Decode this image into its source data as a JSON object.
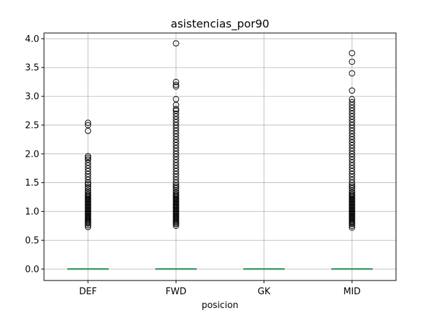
{
  "chart_data": {
    "type": "box",
    "title": "asistencias_por90",
    "xlabel": "posicion",
    "ylabel": "",
    "categories": [
      "DEF",
      "FWD",
      "GK",
      "MID"
    ],
    "ylim": [
      -0.2,
      4.1
    ],
    "yticks": [
      0.0,
      0.5,
      1.0,
      1.5,
      2.0,
      2.5,
      3.0,
      3.5,
      4.0
    ],
    "ytick_labels": [
      "0.0",
      "0.5",
      "1.0",
      "1.5",
      "2.0",
      "2.5",
      "3.0",
      "3.5",
      "4.0"
    ],
    "grid": true,
    "colors": {
      "box": "#1f77b4",
      "median": "#2ca02c",
      "grid": "#b0b0b0"
    },
    "boxes": [
      {
        "category": "DEF",
        "q1": 0.0,
        "median": 0.0,
        "q3": 0.0,
        "whisker_low": 0.0,
        "whisker_high": 0.0,
        "outliers": [
          0.73,
          0.76,
          0.79,
          0.8,
          0.82,
          0.84,
          0.86,
          0.88,
          0.9,
          0.92,
          0.94,
          0.96,
          0.98,
          1.0,
          1.02,
          1.04,
          1.06,
          1.08,
          1.1,
          1.12,
          1.14,
          1.16,
          1.18,
          1.2,
          1.22,
          1.24,
          1.26,
          1.28,
          1.3,
          1.33,
          1.36,
          1.4,
          1.43,
          1.47,
          1.5,
          1.55,
          1.6,
          1.65,
          1.7,
          1.75,
          1.8,
          1.85,
          1.9,
          1.93,
          1.96,
          2.4,
          2.5,
          2.54
        ]
      },
      {
        "category": "FWD",
        "q1": 0.0,
        "median": 0.0,
        "q3": 0.0,
        "whisker_low": 0.0,
        "whisker_high": 0.0,
        "outliers": [
          0.75,
          0.78,
          0.8,
          0.82,
          0.84,
          0.86,
          0.88,
          0.9,
          0.92,
          0.94,
          0.96,
          0.98,
          1.0,
          1.02,
          1.04,
          1.06,
          1.08,
          1.1,
          1.12,
          1.14,
          1.16,
          1.18,
          1.2,
          1.22,
          1.24,
          1.26,
          1.28,
          1.3,
          1.33,
          1.36,
          1.4,
          1.43,
          1.46,
          1.5,
          1.55,
          1.6,
          1.65,
          1.7,
          1.75,
          1.8,
          1.85,
          1.9,
          1.95,
          2.0,
          2.05,
          2.1,
          2.15,
          2.2,
          2.25,
          2.3,
          2.35,
          2.4,
          2.45,
          2.5,
          2.55,
          2.6,
          2.65,
          2.7,
          2.75,
          2.78,
          2.85,
          2.95,
          3.17,
          3.2,
          3.25,
          3.92
        ]
      },
      {
        "category": "GK",
        "q1": 0.0,
        "median": 0.0,
        "q3": 0.0,
        "whisker_low": 0.0,
        "whisker_high": 0.0,
        "outliers": []
      },
      {
        "category": "MID",
        "q1": 0.0,
        "median": 0.0,
        "q3": 0.0,
        "whisker_low": 0.0,
        "whisker_high": 0.0,
        "outliers": [
          0.72,
          0.75,
          0.78,
          0.8,
          0.82,
          0.84,
          0.86,
          0.88,
          0.9,
          0.92,
          0.94,
          0.96,
          0.98,
          1.0,
          1.02,
          1.04,
          1.06,
          1.08,
          1.1,
          1.12,
          1.14,
          1.16,
          1.18,
          1.2,
          1.22,
          1.24,
          1.26,
          1.28,
          1.3,
          1.33,
          1.36,
          1.4,
          1.43,
          1.46,
          1.5,
          1.55,
          1.6,
          1.65,
          1.7,
          1.75,
          1.8,
          1.85,
          1.9,
          1.95,
          2.0,
          2.05,
          2.1,
          2.15,
          2.2,
          2.25,
          2.3,
          2.35,
          2.4,
          2.45,
          2.5,
          2.55,
          2.6,
          2.65,
          2.7,
          2.75,
          2.8,
          2.85,
          2.9,
          2.95,
          3.1,
          3.4,
          3.6,
          3.75
        ]
      }
    ]
  }
}
